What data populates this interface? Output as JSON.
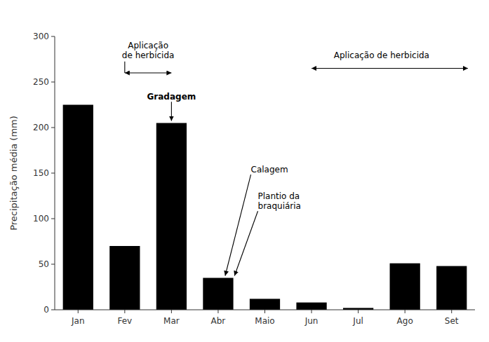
{
  "chart_data": {
    "type": "bar",
    "categories": [
      "Jan",
      "Fev",
      "Mar",
      "Abr",
      "Maio",
      "Jun",
      "Jul",
      "Ago",
      "Set"
    ],
    "values": [
      225,
      70,
      205,
      35,
      12,
      8,
      2,
      51,
      48
    ],
    "color": "#000000",
    "ylabel": "Precipitação média (mm)",
    "ylim": [
      0,
      300
    ],
    "yticks": [
      0,
      50,
      100,
      150,
      200,
      250,
      300
    ],
    "grid": false,
    "annotations": [
      "Aplicação\nde herbicida",
      "Aplicação de herbicida",
      "Gradagem",
      "Calagem",
      "Plantio da\nbraquiária"
    ]
  }
}
